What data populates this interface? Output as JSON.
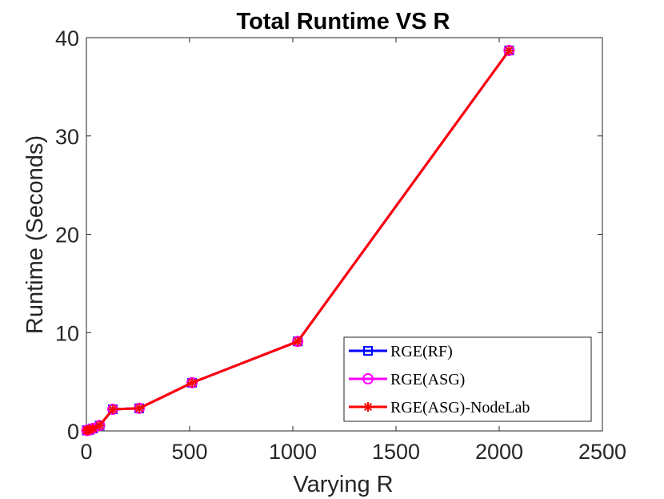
{
  "chart_data": {
    "type": "line",
    "title": "Total Runtime VS R",
    "xlabel": "Varying R",
    "ylabel": "Runtime (Seconds)",
    "xlim": [
      0,
      2500
    ],
    "ylim": [
      0,
      40
    ],
    "xticks": [
      0,
      500,
      1000,
      1500,
      2000,
      2500
    ],
    "yticks": [
      0,
      10,
      20,
      30,
      40
    ],
    "grid": false,
    "legend_position": "bottom-right",
    "x": [
      2,
      4,
      8,
      16,
      32,
      64,
      128,
      256,
      512,
      1024,
      2048
    ],
    "series": [
      {
        "name": "RGE(RF)",
        "color": "#0000ff",
        "marker": "square",
        "values": [
          0.05,
          0.06,
          0.08,
          0.12,
          0.25,
          0.55,
          2.2,
          2.3,
          4.9,
          9.1,
          38.7
        ]
      },
      {
        "name": "RGE(ASG)",
        "color": "#ff00ff",
        "marker": "circle",
        "values": [
          0.05,
          0.06,
          0.08,
          0.12,
          0.25,
          0.55,
          2.2,
          2.3,
          4.9,
          9.1,
          38.7
        ]
      },
      {
        "name": "RGE(ASG)-NodeLab",
        "color": "#ff0000",
        "marker": "star",
        "values": [
          0.05,
          0.06,
          0.08,
          0.12,
          0.25,
          0.55,
          2.2,
          2.3,
          4.9,
          9.1,
          38.7
        ]
      }
    ]
  }
}
